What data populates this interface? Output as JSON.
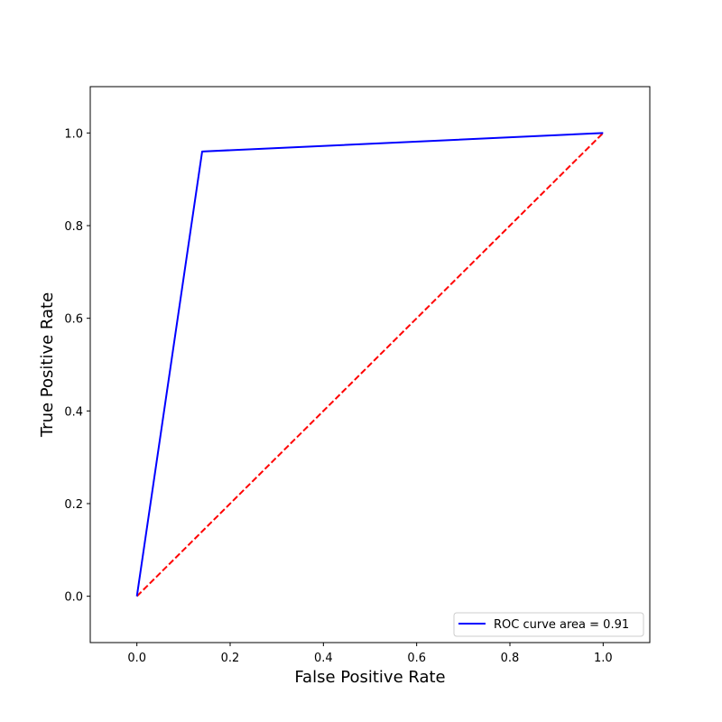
{
  "chart_data": {
    "type": "line",
    "title": "",
    "xlabel": "False Positive Rate",
    "ylabel": "True Positive Rate",
    "xlim": [
      -0.1,
      1.1
    ],
    "ylim": [
      -0.1,
      1.1
    ],
    "xticks": [
      0.0,
      0.2,
      0.4,
      0.6,
      0.8,
      1.0
    ],
    "yticks": [
      0.0,
      0.2,
      0.4,
      0.6,
      0.8,
      1.0
    ],
    "xtick_labels": [
      "0.0",
      "0.2",
      "0.4",
      "0.6",
      "0.8",
      "1.0"
    ],
    "ytick_labels": [
      "0.0",
      "0.2",
      "0.4",
      "0.6",
      "0.8",
      "1.0"
    ],
    "grid": false,
    "legend_position": "lower-right",
    "series": [
      {
        "name": "ROC curve area = 0.91",
        "color": "#0000ff",
        "style": "solid",
        "x": [
          0.0,
          0.14,
          1.0
        ],
        "y": [
          0.0,
          0.96,
          1.0
        ]
      },
      {
        "color": "#ff0000",
        "style": "dashed",
        "x": [
          0.0,
          1.0
        ],
        "y": [
          0.0,
          1.0
        ]
      }
    ]
  }
}
